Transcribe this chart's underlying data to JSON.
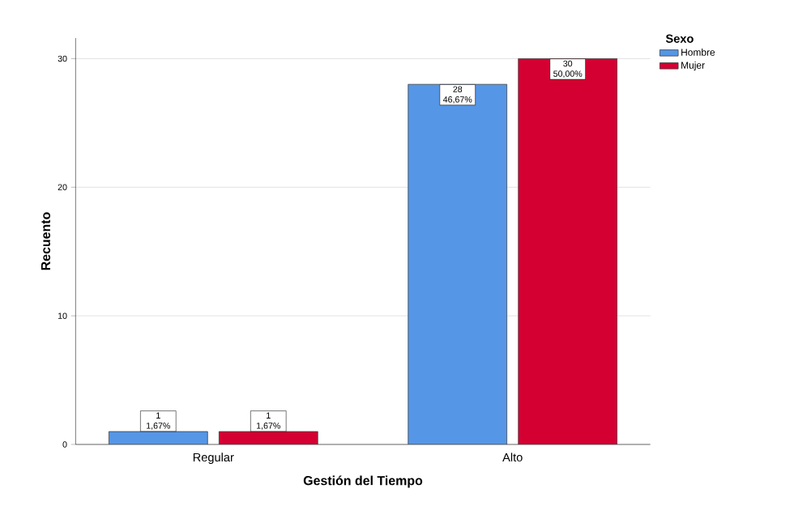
{
  "chart_data": {
    "type": "bar",
    "xlabel": "Gestión del Tiempo",
    "ylabel": "Recuento",
    "legend_title": "Sexo",
    "categories": [
      "Regular",
      "Alto"
    ],
    "series": [
      {
        "name": "Hombre",
        "color": "#5596e6",
        "values": [
          1,
          28
        ],
        "value_labels": [
          "1 1,67%",
          "28 46,67%"
        ]
      },
      {
        "name": "Mujer",
        "color": "#d50032",
        "values": [
          1,
          30
        ],
        "value_labels": [
          "1 1,67%",
          "30 50,00%"
        ]
      }
    ],
    "ylim": [
      0,
      31.6
    ],
    "yticks": [
      0,
      10,
      20,
      30
    ],
    "grid": "y",
    "legend": "top right"
  }
}
